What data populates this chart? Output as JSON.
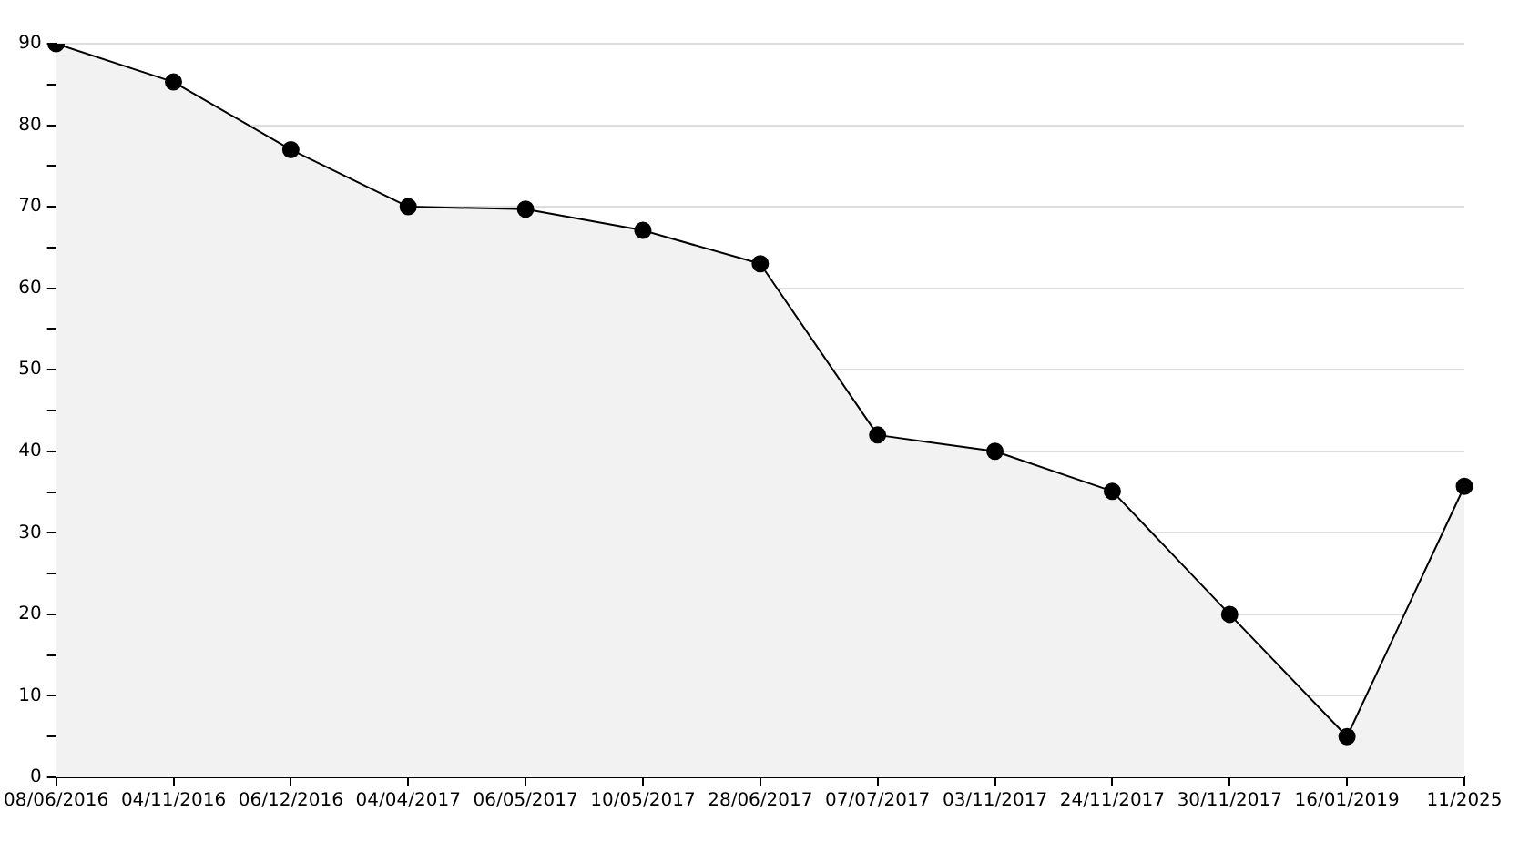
{
  "chart_data": {
    "type": "area",
    "categories": [
      "08/06/2016",
      "04/11/2016",
      "06/12/2016",
      "04/04/2017",
      "06/05/2017",
      "10/05/2017",
      "28/06/2017",
      "07/07/2017",
      "03/11/2017",
      "24/11/2017",
      "30/11/2017",
      "16/01/2019",
      "11/2025"
    ],
    "series": [
      {
        "color": "#000000",
        "values": [
          90,
          85.3,
          77,
          70,
          69.7,
          67.1,
          63,
          42,
          40,
          35.1,
          20,
          5,
          35.7
        ]
      }
    ],
    "ylim": [
      0,
      90
    ],
    "yticks": [
      0,
      {
        "value": 5,
        "label": null
      },
      10,
      {
        "value": 15,
        "label": null
      },
      20,
      {
        "value": 25,
        "label": null
      },
      30,
      {
        "value": 35,
        "label": null
      },
      40,
      {
        "value": 45,
        "label": null
      },
      50,
      {
        "value": 55,
        "label": null
      },
      60,
      {
        "value": 65,
        "label": null
      },
      70,
      {
        "value": 75,
        "label": null
      },
      80,
      {
        "value": 85,
        "label": null
      },
      90
    ],
    "grid": "y",
    "marker": "circle",
    "line_style": "solid",
    "legend": false
  }
}
